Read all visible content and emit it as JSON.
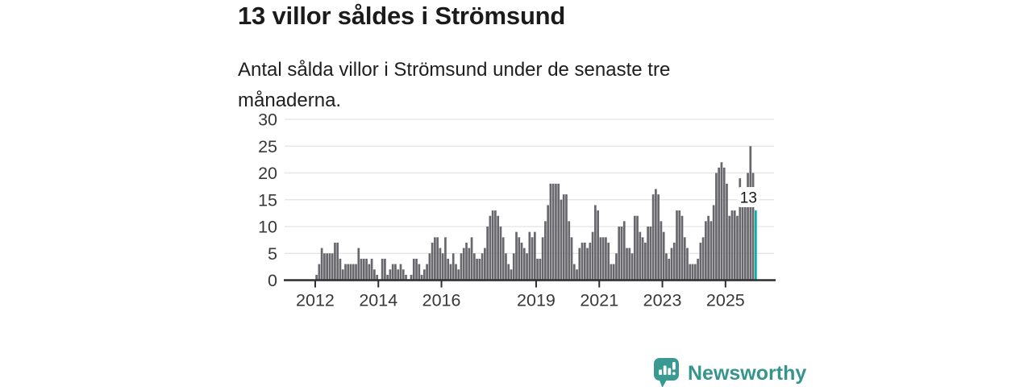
{
  "title": "13 villor såldes i Strömsund",
  "subtitle": "Antal sålda villor i Strömsund under de senaste tre månaderna.",
  "chart_data": {
    "type": "bar",
    "title": "13 villor såldes i Strömsund",
    "subtitle": "Antal sålda villor i Strömsund under de senaste tre månaderna.",
    "freq": "monthly",
    "x_start": "2012-01",
    "x_end": "2025-12",
    "ylim": [
      0,
      30
    ],
    "y_ticks": [
      0,
      5,
      10,
      15,
      20,
      25,
      30
    ],
    "x_tick_labels": [
      "2012",
      "2014",
      "2016",
      "2019",
      "2021",
      "2023",
      "2025"
    ],
    "x_tick_month_index": [
      0,
      24,
      48,
      84,
      108,
      132,
      156
    ],
    "grid": true,
    "bar_color": "#68686c",
    "highlight_color": "#00b2a9",
    "axis_color": "#2e2e31",
    "grid_color": "#e3e3e3",
    "tick_label_color": "#38383b",
    "values": [
      1,
      3,
      6,
      5,
      5,
      5,
      5,
      7,
      7,
      4,
      2,
      3,
      3,
      3,
      3,
      3,
      6,
      4,
      4,
      4,
      3,
      4,
      2,
      1,
      0,
      4,
      4,
      1,
      2,
      3,
      3,
      2,
      3,
      2,
      1,
      0,
      1,
      4,
      4,
      3,
      1,
      2,
      3,
      5,
      7,
      8,
      8,
      6,
      5,
      8,
      4,
      3,
      5,
      3,
      2,
      5,
      6,
      7,
      6,
      8,
      5,
      4,
      4,
      5,
      6,
      10,
      12,
      13,
      13,
      12,
      10,
      8,
      5,
      3,
      2,
      5,
      9,
      8,
      7,
      6,
      5,
      9,
      8,
      9,
      4,
      4,
      8,
      11,
      14,
      18,
      18,
      18,
      18,
      15,
      16,
      16,
      11,
      8,
      3,
      2,
      6,
      7,
      7,
      6,
      7,
      9,
      14,
      13,
      8,
      8,
      8,
      7,
      3,
      3,
      5,
      10,
      10,
      11,
      6,
      6,
      5,
      12,
      12,
      9,
      8,
      7,
      10,
      10,
      16,
      17,
      16,
      11,
      9,
      5,
      4,
      6,
      7,
      13,
      13,
      12,
      8,
      6,
      3,
      3,
      3,
      4,
      7,
      8,
      11,
      12,
      11,
      14,
      20,
      21,
      22,
      21,
      18,
      12,
      13,
      13,
      12,
      19,
      14,
      14,
      20,
      25,
      20,
      13
    ],
    "highlight": {
      "last_bar": true,
      "value": 13,
      "label": "13"
    },
    "annotation": {
      "text": "13",
      "background": "#ffffff",
      "text_color": "#141414"
    }
  },
  "footer": {
    "brand": "Newsworthy",
    "brand_color": "#35958c",
    "logo_icon_color": "#3a9a92"
  }
}
